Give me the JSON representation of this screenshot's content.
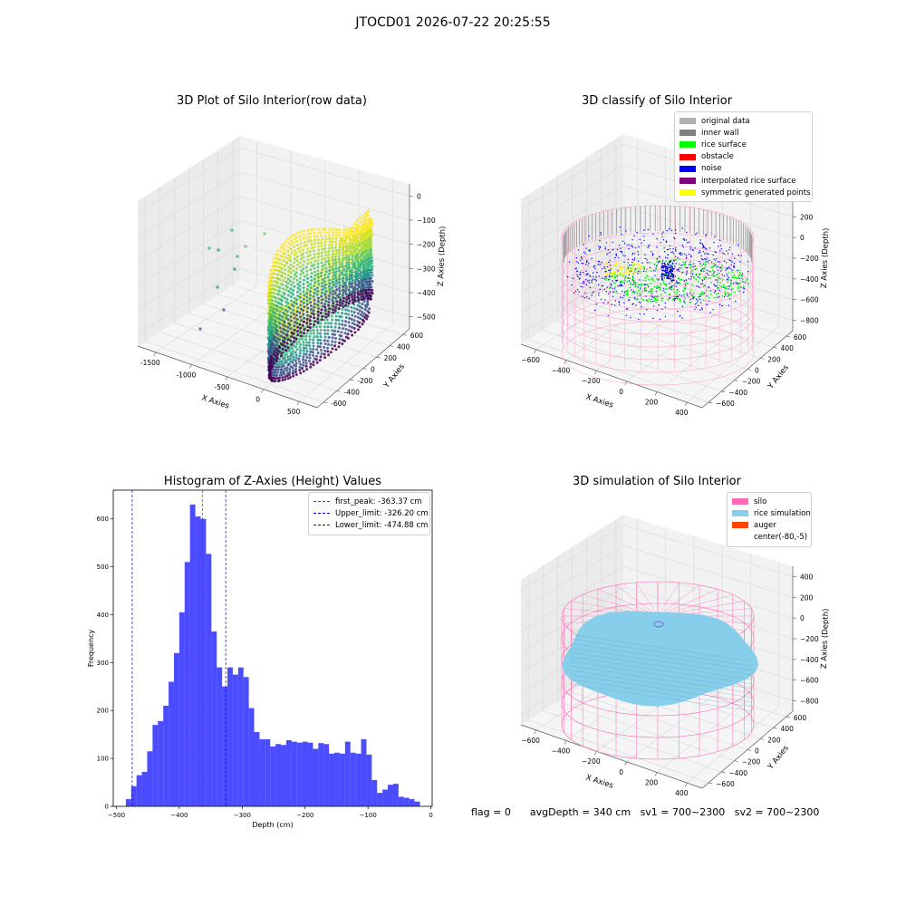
{
  "suptitle": "JTOCD01 2026-07-22 20:25:55",
  "status": {
    "flag": "flag = 0",
    "avg_depth": "avgDepth = 340 cm",
    "sv1": "sv1 = 700~2300",
    "sv2": "sv2 = 700~2300"
  },
  "chart_data": [
    {
      "type": "scatter",
      "title": "3D Plot of Silo Interior(row data)",
      "xlabel": "X Axies",
      "ylabel": "Y Axies",
      "zlabel": "Z Axies (Depth)",
      "x_ticks": [
        "-1500",
        "-1000",
        "-500",
        "0",
        "500"
      ],
      "y_ticks": [
        "-600",
        "-400",
        "-200",
        "0",
        "200",
        "400",
        "600"
      ],
      "z_ticks": [
        "0",
        "−100",
        "−200",
        "−300",
        "−400",
        "−500"
      ],
      "colormap": "viridis"
    },
    {
      "type": "scatter",
      "title": "3D classify of Silo Interior",
      "xlabel": "X Axies",
      "ylabel": "Y Axies",
      "zlabel": "Z Axies (Depth)",
      "x_ticks": [
        "−600",
        "−400",
        "−200",
        "0",
        "200",
        "400"
      ],
      "y_ticks": [
        "−600",
        "−400",
        "−200",
        "0",
        "200",
        "400",
        "600"
      ],
      "z_ticks": [
        "400",
        "200",
        "0",
        "−200",
        "−400",
        "−600",
        "−800"
      ],
      "z_ticks_visible_note": "",
      "legend": [
        {
          "label": "original data",
          "color": "#b0b0b0"
        },
        {
          "label": "inner wall",
          "color": "#808080"
        },
        {
          "label": "rice surface",
          "color": "#00ff00"
        },
        {
          "label": "obstacle",
          "color": "#ff0000"
        },
        {
          "label": "noise",
          "color": "#0000ff"
        },
        {
          "label": "interpolated rice surface",
          "color": "#800080"
        },
        {
          "label": "symmetric generated points",
          "color": "#ffff00"
        }
      ]
    },
    {
      "type": "bar",
      "title": "Histogram of Z-Axies (Height) Values",
      "xlabel": "Depth (cm)",
      "ylabel": "Frequency",
      "xlim": [
        -505,
        2
      ],
      "ylim": [
        0,
        660
      ],
      "x_ticks": [
        -500,
        -400,
        -300,
        -200,
        -100,
        0
      ],
      "x_tick_labels": [
        "−500",
        "−400",
        "−300",
        "−200",
        "−100",
        "0"
      ],
      "y_ticks": [
        0,
        100,
        200,
        300,
        400,
        500,
        600
      ],
      "bar_color": "#0000ff",
      "bin_width": 8.5,
      "bins_start": [
        -485,
        -476.5,
        -468,
        -459.5,
        -451,
        -442.5,
        -434,
        -425.5,
        -417,
        -408.5,
        -400,
        -391.5,
        -383,
        -374.5,
        -366,
        -357.5,
        -349,
        -340.5,
        -332,
        -323.5,
        -315,
        -306.5,
        -298,
        -289.5,
        -281,
        -272.5,
        -264,
        -255.5,
        -247,
        -238.5,
        -230,
        -221.5,
        -213,
        -204.5,
        -196,
        -187.5,
        -179,
        -170.5,
        -162,
        -153.5,
        -145,
        -136.5,
        -128,
        -119.5,
        -111,
        -102.5,
        -94,
        -85.5,
        -77,
        -68.5,
        -60,
        -51.5,
        -43,
        -34.5,
        -26
      ],
      "values": [
        15,
        42,
        65,
        72,
        115,
        170,
        178,
        210,
        260,
        320,
        405,
        510,
        630,
        605,
        600,
        527,
        365,
        290,
        250,
        290,
        275,
        290,
        270,
        205,
        155,
        140,
        140,
        125,
        130,
        128,
        138,
        135,
        133,
        135,
        133,
        120,
        132,
        130,
        110,
        112,
        110,
        135,
        112,
        110,
        140,
        108,
        55,
        28,
        35,
        45,
        47,
        20,
        18,
        15,
        10
      ],
      "vlines": [
        {
          "x": -363.37,
          "label": "first_peak: -363.37 cm",
          "color": "#ff0000"
        },
        {
          "x": -326.2,
          "label": "Upper_limit: -326.20 cm",
          "color": "#0000ff"
        },
        {
          "x": -474.88,
          "label": "Lower_limit: -474.88 cm",
          "color": "#0000ff"
        }
      ]
    },
    {
      "type": "scatter",
      "title": "3D simulation of Silo Interior",
      "xlabel": "X Axies",
      "ylabel": "Y Axies",
      "zlabel": "Z Axies (Depth)",
      "x_ticks": [
        "−600",
        "−400",
        "−200",
        "0",
        "200",
        "400"
      ],
      "y_ticks": [
        "−600",
        "−400",
        "−200",
        "0",
        "200",
        "400",
        "600"
      ],
      "z_ticks": [
        "400",
        "200",
        "0",
        "−200",
        "−400",
        "−600",
        "−800"
      ],
      "legend": [
        {
          "label": "silo",
          "color": "#ff69b4"
        },
        {
          "label": "rice simulation",
          "color": "#87ceeb"
        },
        {
          "label": "auger",
          "color": "#ff4500"
        },
        {
          "label": "center(-80,-5)",
          "color": "#ffffff"
        }
      ]
    }
  ]
}
